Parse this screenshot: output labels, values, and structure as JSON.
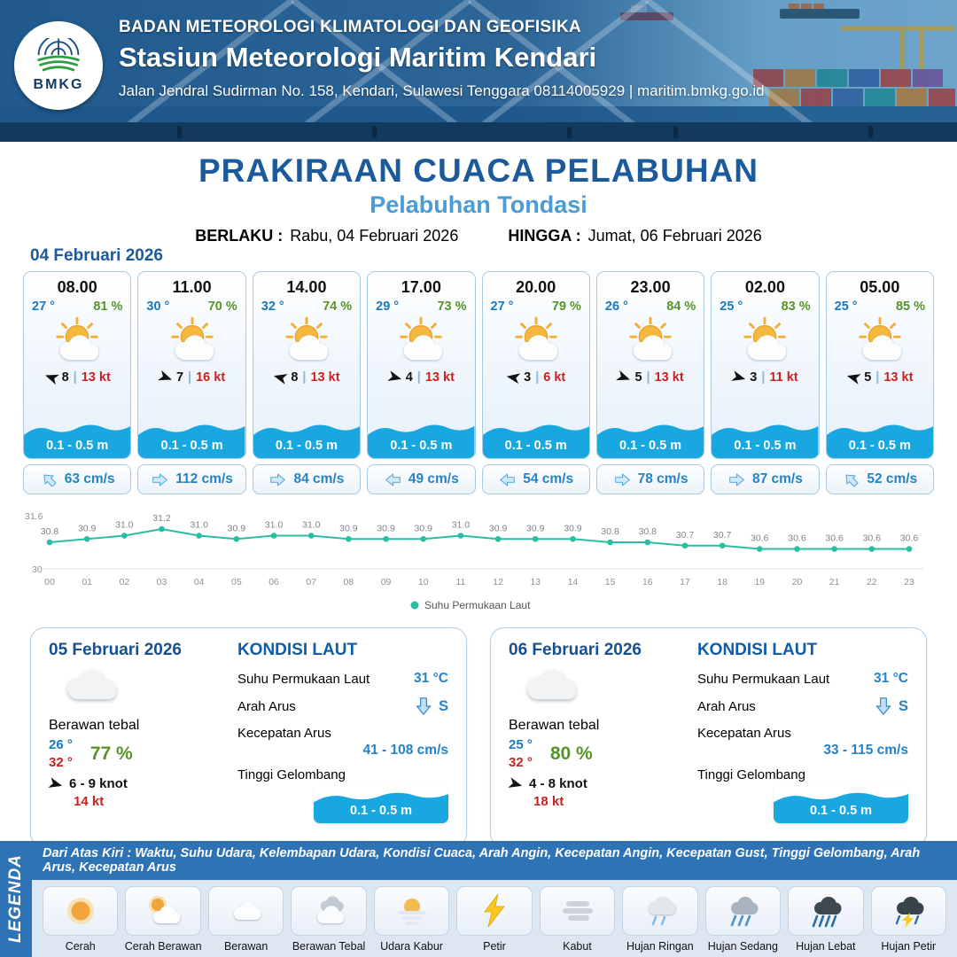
{
  "header": {
    "logo_text": "BMKG",
    "agency": "BADAN METEOROLOGI KLIMATOLOGI DAN GEOFISIKA",
    "station": "Stasiun Meteorologi Maritim Kendari",
    "address": "Jalan Jendral Sudirman No. 158, Kendari, Sulawesi Tenggara  08114005929 | maritim.bmkg.go.id"
  },
  "title": {
    "main": "PRAKIRAAN CUACA PELABUHAN",
    "subtitle": "Pelabuhan Tondasi",
    "valid_label": "BERLAKU :",
    "valid_value": "Rabu, 04 Februari 2026",
    "until_label": "HINGGA :",
    "until_value": "Jumat, 06 Februari 2026"
  },
  "forecast_date": "04 Februari 2026",
  "wind_sep": "|",
  "colors": {
    "accent_blue": "#1b5a9b",
    "subtitle_blue": "#4b9bd5",
    "temp_blue": "#1879c0",
    "humidity_green": "#569329",
    "speed_red": "#cc1f1f",
    "wave_blue": "#18a7e0",
    "chart_teal": "#2abda3",
    "legend_bar_blue": "#2d73b5"
  },
  "cards": [
    {
      "time": "08.00",
      "temp": "27 °",
      "humidity": "81 %",
      "wind_value": "8",
      "wind_speed": "13 kt",
      "wind_rot": 200,
      "wave": "0.1 - 0.5 m",
      "current": "63 cm/s",
      "current_rot": 225
    },
    {
      "time": "11.00",
      "temp": "30 °",
      "humidity": "70 %",
      "wind_value": "7",
      "wind_speed": "16 kt",
      "wind_rot": 20,
      "wave": "0.1 - 0.5 m",
      "current": "112 cm/s",
      "current_rot": 0
    },
    {
      "time": "14.00",
      "temp": "32 °",
      "humidity": "74 %",
      "wind_value": "8",
      "wind_speed": "13 kt",
      "wind_rot": 195,
      "wave": "0.1 - 0.5 m",
      "current": "84 cm/s",
      "current_rot": 0
    },
    {
      "time": "17.00",
      "temp": "29 °",
      "humidity": "73 %",
      "wind_value": "4",
      "wind_speed": "13 kt",
      "wind_rot": 15,
      "wave": "0.1 - 0.5 m",
      "current": "49 cm/s",
      "current_rot": 180
    },
    {
      "time": "20.00",
      "temp": "27 °",
      "humidity": "79 %",
      "wind_value": "3",
      "wind_speed": "6 kt",
      "wind_rot": 190,
      "wave": "0.1 - 0.5 m",
      "current": "54 cm/s",
      "current_rot": 180
    },
    {
      "time": "23.00",
      "temp": "26 °",
      "humidity": "84 %",
      "wind_value": "5",
      "wind_speed": "13 kt",
      "wind_rot": 20,
      "wave": "0.1 - 0.5 m",
      "current": "78 cm/s",
      "current_rot": 0
    },
    {
      "time": "02.00",
      "temp": "25 °",
      "humidity": "83 %",
      "wind_value": "3",
      "wind_speed": "11 kt",
      "wind_rot": 15,
      "wave": "0.1 - 0.5 m",
      "current": "87 cm/s",
      "current_rot": 0
    },
    {
      "time": "05.00",
      "temp": "25 °",
      "humidity": "85 %",
      "wind_value": "5",
      "wind_speed": "13 kt",
      "wind_rot": 195,
      "wave": "0.1 - 0.5 m",
      "current": "52 cm/s",
      "current_rot": 225
    }
  ],
  "chart_data": {
    "type": "line",
    "series_name": "Suhu Permukaan Laut",
    "x": [
      "00",
      "01",
      "02",
      "03",
      "04",
      "05",
      "06",
      "07",
      "08",
      "09",
      "10",
      "11",
      "12",
      "13",
      "14",
      "15",
      "16",
      "17",
      "18",
      "19",
      "20",
      "21",
      "22",
      "23"
    ],
    "values": [
      30.8,
      30.9,
      31.0,
      31.2,
      31.0,
      30.9,
      31.0,
      31.0,
      30.9,
      30.9,
      30.9,
      31.0,
      30.9,
      30.9,
      30.9,
      30.8,
      30.8,
      30.7,
      30.7,
      30.6,
      30.6,
      30.6,
      30.6,
      30.6
    ],
    "ylim": [
      30,
      31.6
    ],
    "y_tick_labels": [
      "30",
      "31.6"
    ],
    "line_color": "#2abda3",
    "grid": false,
    "legend_position": "bottom"
  },
  "summary": [
    {
      "date": "05 Februari 2026",
      "condition": "Berawan tebal",
      "temp_min": "26 °",
      "temp_max": "32 °",
      "humidity": "77 %",
      "wind_range": "6  - 9 knot",
      "gust": "14 kt",
      "wind_rot": 15,
      "sea": {
        "title": "KONDISI LAUT",
        "sst_label": "Suhu Permukaan Laut",
        "sst_value": "31 °C",
        "current_dir_label": "Arah Arus",
        "current_dir": "S",
        "current_speed_label": "Kecepatan Arus",
        "current_speed": "41 - 108 cm/s",
        "wave_label": "Tinggi Gelombang",
        "wave_value": "0.1 - 0.5 m"
      }
    },
    {
      "date": "06 Februari 2026",
      "condition": "Berawan tebal",
      "temp_min": "25 °",
      "temp_max": "32 °",
      "humidity": "80 %",
      "wind_range": "4  - 8 knot",
      "gust": "18 kt",
      "wind_rot": 15,
      "sea": {
        "title": "KONDISI LAUT",
        "sst_label": "Suhu Permukaan Laut",
        "sst_value": "31 °C",
        "current_dir_label": "Arah Arus",
        "current_dir": "S",
        "current_speed_label": "Kecepatan Arus",
        "current_speed": "33 - 115 cm/s",
        "wave_label": "Tinggi Gelombang",
        "wave_value": "0.1 - 0.5 m"
      }
    }
  ],
  "legend": {
    "title": "LEGENDA",
    "description": "Dari Atas Kiri : Waktu, Suhu Udara, Kelembapan Udara, Kondisi Cuaca, Arah Angin, Kecepatan Angin, Kecepatan Gust, Tinggi Gelombang, Arah Arus, Kecepatan Arus",
    "items": [
      {
        "label": "Cerah",
        "icon": "sun-icon"
      },
      {
        "label": "Cerah Berawan",
        "icon": "sun-cloud-icon"
      },
      {
        "label": "Berawan",
        "icon": "cloud-icon"
      },
      {
        "label": "Berawan Tebal",
        "icon": "thick-clouds-icon"
      },
      {
        "label": "Udara Kabur",
        "icon": "haze-icon"
      },
      {
        "label": "Petir",
        "icon": "lightning-icon"
      },
      {
        "label": "Kabut",
        "icon": "fog-icon"
      },
      {
        "label": "Hujan Ringan",
        "icon": "light-rain-icon"
      },
      {
        "label": "Hujan Sedang",
        "icon": "moderate-rain-icon"
      },
      {
        "label": "Hujan Lebat",
        "icon": "heavy-rain-icon"
      },
      {
        "label": "Hujan Petir",
        "icon": "thunderstorm-icon"
      }
    ]
  }
}
